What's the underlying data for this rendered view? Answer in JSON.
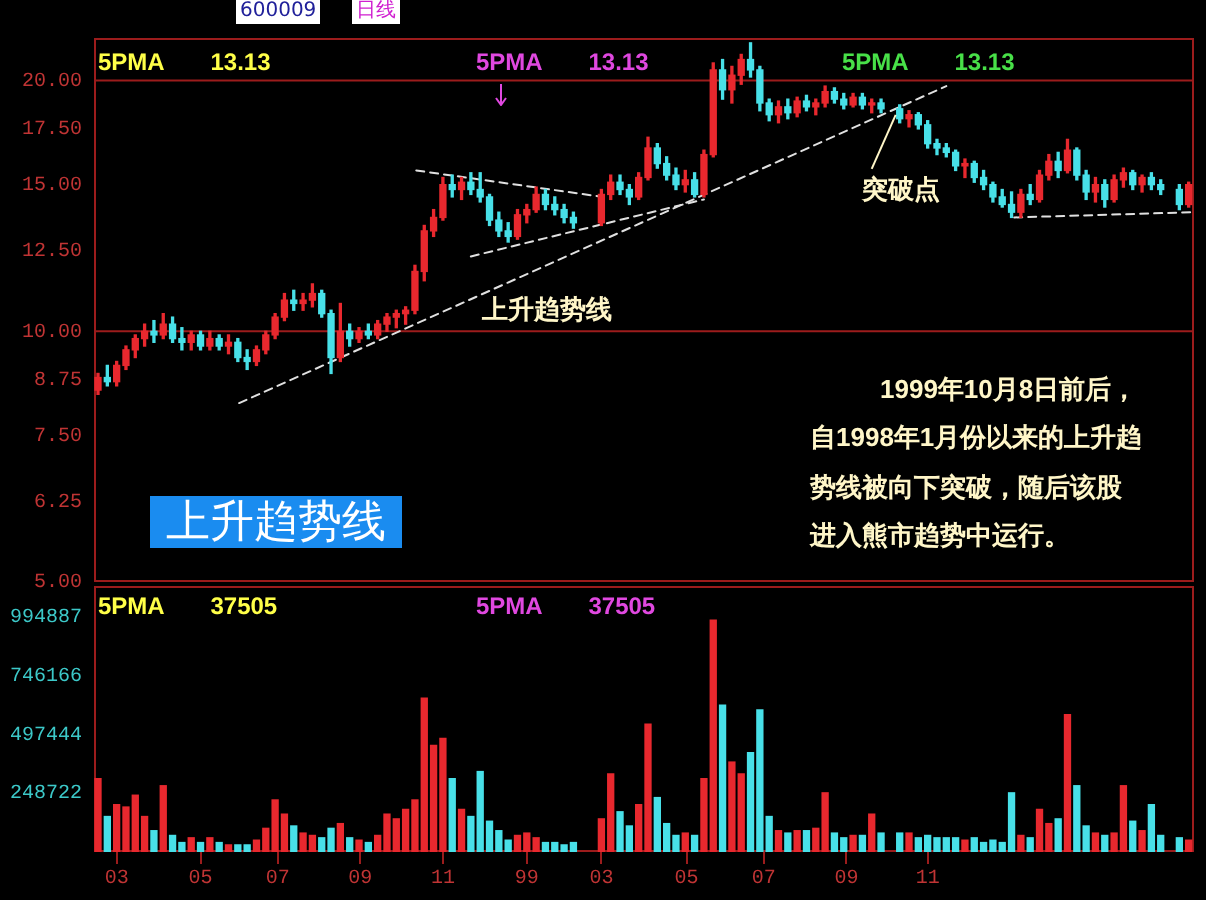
{
  "chart_data": [
    {
      "type": "candlestick",
      "title": "600009",
      "subtitle": "日线",
      "x": [
        "1998-02-16",
        "1998-02-23",
        "1998-03-02",
        "1998-03-09",
        "1998-03-16",
        "1998-03-23",
        "1998-03-30",
        "1998-04-06",
        "1998-04-13",
        "1998-04-20",
        "1998-04-27",
        "1998-05-04",
        "1998-05-11",
        "1998-05-18",
        "1998-05-25",
        "1998-06-01",
        "1998-06-08",
        "1998-06-15",
        "1998-06-22",
        "1998-06-29",
        "1998-07-06",
        "1998-07-13",
        "1998-07-20",
        "1998-07-27",
        "1998-08-03",
        "1998-08-10",
        "1998-08-17",
        "1998-08-24",
        "1998-08-31",
        "1998-09-07",
        "1998-09-14",
        "1998-09-21",
        "1998-09-28",
        "1998-10-05",
        "1998-10-12",
        "1998-10-19",
        "1998-10-26",
        "1998-11-02",
        "1998-11-09",
        "1998-11-16",
        "1998-11-23",
        "1998-11-30",
        "1998-12-07",
        "1998-12-14",
        "1998-12-21",
        "1998-12-28",
        "1999-01-04",
        "1999-01-11",
        "1999-01-18",
        "1999-01-25",
        "1999-02-01",
        "1999-02-08",
        "1999-03-01",
        "1999-03-08",
        "1999-03-15",
        "1999-03-22",
        "1999-03-29",
        "1999-04-05",
        "1999-04-12",
        "1999-04-19",
        "1999-04-26",
        "1999-05-03",
        "1999-05-10",
        "1999-05-17",
        "1999-05-24",
        "1999-05-31",
        "1999-06-07",
        "1999-06-14",
        "1999-06-21",
        "1999-06-28",
        "1999-07-05",
        "1999-07-12",
        "1999-07-19",
        "1999-07-26",
        "1999-08-02",
        "1999-08-09",
        "1999-08-16",
        "1999-08-23",
        "1999-08-30",
        "1999-09-06",
        "1999-09-13",
        "1999-09-20",
        "1999-09-27",
        "1999-10-11",
        "1999-10-18",
        "1999-10-25",
        "1999-11-01",
        "1999-11-08",
        "1999-11-15",
        "1999-11-22",
        "1999-11-29",
        "1999-12-06",
        "1999-12-13",
        "1999-12-20",
        "1999-12-27",
        "2000-01-03",
        "2000-01-10",
        "2000-01-17",
        "2000-01-24",
        "2000-01-31",
        "2000-02-07",
        "2000-02-14",
        "2000-02-21",
        "2000-02-28",
        "2000-03-06",
        "2000-03-13",
        "2000-03-20",
        "2000-03-27",
        "2000-04-03",
        "2000-04-10",
        "2000-04-17",
        "2000-04-24",
        "2000-05-08",
        "2000-05-15"
      ],
      "ohlc": [
        [
          8.5,
          8.9,
          8.4,
          8.8
        ],
        [
          8.8,
          9.1,
          8.6,
          8.7
        ],
        [
          8.7,
          9.2,
          8.6,
          9.1
        ],
        [
          9.1,
          9.6,
          9.0,
          9.5
        ],
        [
          9.5,
          9.9,
          9.3,
          9.8
        ],
        [
          9.8,
          10.2,
          9.6,
          10.0
        ],
        [
          10.0,
          10.3,
          9.7,
          9.9
        ],
        [
          9.9,
          10.5,
          9.8,
          10.2
        ],
        [
          10.2,
          10.4,
          9.7,
          9.8
        ],
        [
          9.8,
          10.1,
          9.5,
          9.7
        ],
        [
          9.7,
          10.0,
          9.5,
          9.9
        ],
        [
          9.9,
          10.0,
          9.5,
          9.6
        ],
        [
          9.6,
          10.0,
          9.5,
          9.8
        ],
        [
          9.8,
          9.9,
          9.5,
          9.6
        ],
        [
          9.6,
          9.9,
          9.4,
          9.7
        ],
        [
          9.7,
          9.8,
          9.2,
          9.3
        ],
        [
          9.3,
          9.5,
          9.0,
          9.2
        ],
        [
          9.2,
          9.6,
          9.1,
          9.5
        ],
        [
          9.5,
          10.0,
          9.4,
          9.9
        ],
        [
          9.9,
          10.5,
          9.8,
          10.4
        ],
        [
          10.4,
          11.1,
          10.3,
          10.9
        ],
        [
          10.9,
          11.2,
          10.6,
          10.8
        ],
        [
          10.8,
          11.1,
          10.6,
          10.9
        ],
        [
          10.9,
          11.4,
          10.7,
          11.1
        ],
        [
          11.1,
          11.2,
          10.4,
          10.5
        ],
        [
          10.5,
          10.6,
          8.9,
          9.3
        ],
        [
          9.3,
          10.8,
          9.2,
          10.0
        ],
        [
          10.0,
          10.2,
          9.6,
          9.8
        ],
        [
          9.8,
          10.1,
          9.7,
          10.0
        ],
        [
          10.0,
          10.2,
          9.8,
          9.9
        ],
        [
          9.9,
          10.3,
          9.8,
          10.2
        ],
        [
          10.2,
          10.5,
          10.0,
          10.4
        ],
        [
          10.4,
          10.6,
          10.1,
          10.5
        ],
        [
          10.5,
          10.7,
          10.2,
          10.6
        ],
        [
          10.6,
          12.0,
          10.5,
          11.8
        ],
        [
          11.8,
          13.4,
          11.5,
          13.2
        ],
        [
          13.2,
          14.0,
          13.0,
          13.7
        ],
        [
          13.7,
          15.3,
          13.6,
          15.0
        ],
        [
          15.0,
          15.4,
          14.5,
          14.8
        ],
        [
          14.8,
          15.3,
          14.4,
          15.1
        ],
        [
          15.1,
          15.5,
          14.6,
          14.8
        ],
        [
          14.8,
          15.5,
          14.3,
          14.5
        ],
        [
          14.5,
          14.6,
          13.4,
          13.6
        ],
        [
          13.6,
          13.9,
          13.0,
          13.2
        ],
        [
          13.2,
          13.5,
          12.8,
          13.0
        ],
        [
          13.0,
          14.0,
          12.9,
          13.8
        ],
        [
          13.8,
          14.2,
          13.5,
          14.0
        ],
        [
          14.0,
          14.9,
          13.9,
          14.6
        ],
        [
          14.6,
          14.8,
          14.0,
          14.2
        ],
        [
          14.2,
          14.5,
          13.8,
          14.0
        ],
        [
          14.0,
          14.2,
          13.5,
          13.7
        ],
        [
          13.7,
          13.9,
          13.3,
          13.5
        ],
        [
          13.5,
          14.8,
          13.4,
          14.6
        ],
        [
          14.6,
          15.4,
          14.4,
          15.1
        ],
        [
          15.1,
          15.4,
          14.6,
          14.8
        ],
        [
          14.8,
          15.0,
          14.2,
          14.5
        ],
        [
          14.5,
          15.5,
          14.4,
          15.3
        ],
        [
          15.3,
          17.1,
          15.2,
          16.6
        ],
        [
          16.6,
          16.8,
          15.7,
          15.9
        ],
        [
          15.9,
          16.2,
          15.2,
          15.4
        ],
        [
          15.4,
          15.7,
          14.8,
          15.0
        ],
        [
          15.0,
          15.6,
          14.7,
          15.2
        ],
        [
          15.2,
          15.5,
          14.5,
          14.6
        ],
        [
          14.6,
          16.5,
          14.5,
          16.3
        ],
        [
          16.3,
          21.0,
          16.2,
          20.6
        ],
        [
          20.6,
          21.2,
          19.0,
          19.5
        ],
        [
          19.5,
          20.8,
          18.8,
          20.3
        ],
        [
          20.3,
          21.5,
          19.8,
          21.2
        ],
        [
          21.2,
          22.2,
          20.2,
          20.6
        ],
        [
          20.6,
          20.8,
          18.4,
          18.8
        ],
        [
          18.8,
          19.0,
          17.9,
          18.2
        ],
        [
          18.2,
          18.9,
          17.8,
          18.6
        ],
        [
          18.6,
          19.0,
          18.0,
          18.3
        ],
        [
          18.3,
          19.1,
          18.1,
          18.9
        ],
        [
          18.9,
          19.2,
          18.4,
          18.6
        ],
        [
          18.6,
          19.0,
          18.2,
          18.8
        ],
        [
          18.8,
          19.7,
          18.6,
          19.4
        ],
        [
          19.4,
          19.6,
          18.8,
          19.0
        ],
        [
          19.0,
          19.3,
          18.5,
          18.7
        ],
        [
          18.7,
          19.3,
          18.6,
          19.1
        ],
        [
          19.1,
          19.3,
          18.5,
          18.7
        ],
        [
          18.7,
          19.0,
          18.3,
          18.8
        ],
        [
          18.8,
          19.0,
          18.3,
          18.5
        ],
        [
          18.5,
          18.7,
          17.8,
          18.0
        ],
        [
          18.0,
          18.4,
          17.6,
          18.2
        ],
        [
          18.2,
          18.3,
          17.5,
          17.7
        ],
        [
          17.7,
          17.9,
          16.6,
          16.8
        ],
        [
          16.8,
          17.0,
          16.3,
          16.6
        ],
        [
          16.6,
          16.8,
          16.2,
          16.4
        ],
        [
          16.4,
          16.5,
          15.6,
          15.8
        ],
        [
          15.8,
          16.1,
          15.3,
          15.9
        ],
        [
          15.9,
          16.0,
          15.1,
          15.3
        ],
        [
          15.3,
          15.6,
          14.8,
          15.0
        ],
        [
          15.0,
          15.1,
          14.3,
          14.5
        ],
        [
          14.5,
          14.8,
          14.1,
          14.2
        ],
        [
          14.2,
          14.7,
          13.7,
          13.9
        ],
        [
          13.9,
          14.8,
          13.7,
          14.6
        ],
        [
          14.6,
          15.0,
          14.2,
          14.4
        ],
        [
          14.4,
          15.6,
          14.3,
          15.4
        ],
        [
          15.4,
          16.3,
          15.2,
          16.0
        ],
        [
          16.0,
          16.4,
          15.3,
          15.6
        ],
        [
          15.6,
          17.0,
          15.5,
          16.5
        ],
        [
          16.5,
          16.6,
          15.2,
          15.4
        ],
        [
          15.4,
          15.6,
          14.4,
          14.7
        ],
        [
          14.7,
          15.3,
          14.3,
          15.0
        ],
        [
          15.0,
          15.2,
          14.1,
          14.4
        ],
        [
          14.4,
          15.4,
          14.3,
          15.2
        ],
        [
          15.2,
          15.7,
          14.9,
          15.5
        ],
        [
          15.5,
          15.6,
          14.8,
          15.0
        ],
        [
          15.0,
          15.4,
          14.7,
          15.3
        ],
        [
          15.3,
          15.5,
          14.8,
          15.0
        ],
        [
          15.0,
          15.2,
          14.6,
          14.8
        ],
        [
          14.8,
          15.0,
          14.0,
          14.2
        ],
        [
          14.2,
          15.1,
          14.1,
          15.0
        ]
      ],
      "colors": [
        "#e8282e",
        "#48e0e8",
        "#e8282e",
        "#e8282e",
        "#e8282e",
        "#e8282e",
        "#48e0e8",
        "#e8282e",
        "#48e0e8",
        "#48e0e8",
        "#e8282e",
        "#48e0e8",
        "#e8282e",
        "#48e0e8",
        "#e8282e",
        "#48e0e8",
        "#48e0e8",
        "#e8282e",
        "#e8282e",
        "#e8282e",
        "#e8282e",
        "#48e0e8",
        "#e8282e",
        "#e8282e",
        "#48e0e8",
        "#48e0e8",
        "#e8282e",
        "#48e0e8",
        "#e8282e",
        "#48e0e8",
        "#e8282e",
        "#e8282e",
        "#e8282e",
        "#e8282e",
        "#e8282e",
        "#e8282e",
        "#e8282e",
        "#e8282e",
        "#48e0e8",
        "#e8282e",
        "#48e0e8",
        "#48e0e8",
        "#48e0e8",
        "#48e0e8",
        "#48e0e8",
        "#e8282e",
        "#e8282e",
        "#e8282e",
        "#48e0e8",
        "#48e0e8",
        "#48e0e8",
        "#48e0e8",
        "#e8282e",
        "#e8282e",
        "#48e0e8",
        "#48e0e8",
        "#e8282e",
        "#e8282e",
        "#48e0e8",
        "#48e0e8",
        "#48e0e8",
        "#e8282e",
        "#48e0e8",
        "#e8282e",
        "#e8282e",
        "#48e0e8",
        "#e8282e",
        "#e8282e",
        "#48e0e8",
        "#48e0e8",
        "#48e0e8",
        "#e8282e",
        "#48e0e8",
        "#e8282e",
        "#48e0e8",
        "#e8282e",
        "#e8282e",
        "#48e0e8",
        "#48e0e8",
        "#e8282e",
        "#48e0e8",
        "#e8282e",
        "#48e0e8",
        "#48e0e8",
        "#e8282e",
        "#48e0e8",
        "#48e0e8",
        "#48e0e8",
        "#48e0e8",
        "#48e0e8",
        "#e8282e",
        "#48e0e8",
        "#48e0e8",
        "#48e0e8",
        "#48e0e8",
        "#48e0e8",
        "#e8282e",
        "#48e0e8",
        "#e8282e",
        "#e8282e",
        "#48e0e8",
        "#e8282e",
        "#48e0e8",
        "#48e0e8",
        "#e8282e",
        "#48e0e8",
        "#e8282e",
        "#e8282e",
        "#48e0e8",
        "#e8282e",
        "#48e0e8",
        "#48e0e8",
        "#48e0e8",
        "#e8282e"
      ],
      "series": [
        {
          "type": "line",
          "x": [
            "1998-06-02",
            "1999-11-15"
          ],
          "values": [
            8.2,
            19.7
          ],
          "color": "#e0e0e0",
          "line_style": "dashed"
        },
        {
          "type": "line",
          "x": [
            "1998-10-13",
            "1999-03-02"
          ],
          "values": [
            15.6,
            14.5
          ],
          "color": "#e0e0e0",
          "line_style": "dashed"
        },
        {
          "type": "line",
          "x": [
            "1998-11-23",
            "1999-05-17"
          ],
          "values": [
            12.3,
            14.4
          ],
          "color": "#e0e0e0",
          "line_style": "dashed"
        },
        {
          "type": "line",
          "x": [
            "2000-01-05",
            "2000-05-19"
          ],
          "values": [
            13.7,
            13.9
          ],
          "color": "#e0e0e0",
          "line_style": "dashed"
        }
      ],
      "xlim": [
        "1998-02-13",
        "2000-05-19"
      ],
      "ylim": [
        5,
        22.5
      ],
      "yticks": [
        {
          "value": 5,
          "label": "5.00"
        },
        {
          "value": 6.25,
          "label": "6.25"
        },
        {
          "value": 7.5,
          "label": "7.50"
        },
        {
          "value": 8.75,
          "label": "8.75"
        },
        {
          "value": 10,
          "label": "10.00"
        },
        {
          "value": 12.5,
          "label": "12.50"
        },
        {
          "value": 15,
          "label": "15.00"
        },
        {
          "value": 17.5,
          "label": "17.50"
        },
        {
          "value": 20,
          "label": "20.00"
        }
      ],
      "log": true,
      "tick_labels": "y",
      "ref_lines": [
        {
          "axis": "y",
          "value": 20,
          "color": "#9c1c1c"
        },
        {
          "axis": "y",
          "value": 10,
          "color": "#9c1c1c"
        }
      ],
      "annotations": [
        "5PMA 13.13",
        "5PMA 13.13",
        "5PMA 13.13",
        {
          "text": "上升趋势线",
          "x": "1998-11-10",
          "y": 10.6
        },
        {
          "text": "突破点",
          "x": "1999-10-08",
          "y": 18.5
        },
        "上升趋势线",
        "1999年10月8日前后，",
        "自1998年1月份以来的上升趋",
        "势线被向下突破，随后该股",
        "进入熊市趋势中运行。"
      ]
    },
    {
      "type": "bar",
      "x": [
        "1998-02-16",
        "1998-02-23",
        "1998-03-02",
        "1998-03-09",
        "1998-03-16",
        "1998-03-23",
        "1998-03-30",
        "1998-04-06",
        "1998-04-13",
        "1998-04-20",
        "1998-04-27",
        "1998-05-04",
        "1998-05-11",
        "1998-05-18",
        "1998-05-25",
        "1998-06-01",
        "1998-06-08",
        "1998-06-15",
        "1998-06-22",
        "1998-06-29",
        "1998-07-06",
        "1998-07-13",
        "1998-07-20",
        "1998-07-27",
        "1998-08-03",
        "1998-08-10",
        "1998-08-17",
        "1998-08-24",
        "1998-08-31",
        "1998-09-07",
        "1998-09-14",
        "1998-09-21",
        "1998-09-28",
        "1998-10-05",
        "1998-10-12",
        "1998-10-19",
        "1998-10-26",
        "1998-11-02",
        "1998-11-09",
        "1998-11-16",
        "1998-11-23",
        "1998-11-30",
        "1998-12-07",
        "1998-12-14",
        "1998-12-21",
        "1998-12-28",
        "1999-01-04",
        "1999-01-11",
        "1999-01-18",
        "1999-01-25",
        "1999-02-01",
        "1999-02-08",
        "1999-03-01",
        "1999-03-08",
        "1999-03-15",
        "1999-03-22",
        "1999-03-29",
        "1999-04-05",
        "1999-04-12",
        "1999-04-19",
        "1999-04-26",
        "1999-05-03",
        "1999-05-10",
        "1999-05-17",
        "1999-05-24",
        "1999-05-31",
        "1999-06-07",
        "1999-06-14",
        "1999-06-21",
        "1999-06-28",
        "1999-07-05",
        "1999-07-12",
        "1999-07-19",
        "1999-07-26",
        "1999-08-02",
        "1999-08-09",
        "1999-08-16",
        "1999-08-23",
        "1999-08-30",
        "1999-09-06",
        "1999-09-13",
        "1999-09-20",
        "1999-09-27",
        "1999-10-11",
        "1999-10-18",
        "1999-10-25",
        "1999-11-01",
        "1999-11-08",
        "1999-11-15",
        "1999-11-22",
        "1999-11-29",
        "1999-12-06",
        "1999-12-13",
        "1999-12-20",
        "1999-12-27",
        "2000-01-03",
        "2000-01-10",
        "2000-01-17",
        "2000-01-24",
        "2000-01-31",
        "2000-02-07",
        "2000-02-14",
        "2000-02-21",
        "2000-02-28",
        "2000-03-06",
        "2000-03-13",
        "2000-03-20",
        "2000-03-27",
        "2000-04-03",
        "2000-04-10",
        "2000-04-17",
        "2000-04-24",
        "2000-05-08",
        "2000-05-15"
      ],
      "values": [
        310000,
        150000,
        200000,
        190000,
        240000,
        150000,
        90000,
        280000,
        70000,
        40000,
        60000,
        40000,
        60000,
        40000,
        30000,
        30000,
        30000,
        50000,
        100000,
        220000,
        160000,
        110000,
        80000,
        70000,
        60000,
        100000,
        120000,
        60000,
        50000,
        40000,
        70000,
        160000,
        140000,
        180000,
        220000,
        650000,
        450000,
        480000,
        310000,
        180000,
        150000,
        340000,
        130000,
        90000,
        50000,
        70000,
        80000,
        60000,
        40000,
        40000,
        30000,
        40000,
        140000,
        330000,
        170000,
        110000,
        200000,
        540000,
        230000,
        120000,
        70000,
        80000,
        70000,
        310000,
        980000,
        620000,
        380000,
        330000,
        420000,
        600000,
        150000,
        90000,
        80000,
        90000,
        90000,
        100000,
        250000,
        80000,
        60000,
        70000,
        70000,
        160000,
        80000,
        80000,
        80000,
        60000,
        70000,
        60000,
        60000,
        60000,
        50000,
        60000,
        40000,
        50000,
        40000,
        250000,
        70000,
        60000,
        180000,
        120000,
        140000,
        580000,
        280000,
        110000,
        80000,
        70000,
        80000,
        280000,
        130000,
        90000,
        200000,
        70000,
        60000,
        50000
      ],
      "colors": [
        "#e8282e",
        "#48e0e8",
        "#e8282e",
        "#e8282e",
        "#e8282e",
        "#e8282e",
        "#48e0e8",
        "#e8282e",
        "#48e0e8",
        "#48e0e8",
        "#e8282e",
        "#48e0e8",
        "#e8282e",
        "#48e0e8",
        "#e8282e",
        "#48e0e8",
        "#48e0e8",
        "#e8282e",
        "#e8282e",
        "#e8282e",
        "#e8282e",
        "#48e0e8",
        "#e8282e",
        "#e8282e",
        "#48e0e8",
        "#48e0e8",
        "#e8282e",
        "#48e0e8",
        "#e8282e",
        "#48e0e8",
        "#e8282e",
        "#e8282e",
        "#e8282e",
        "#e8282e",
        "#e8282e",
        "#e8282e",
        "#e8282e",
        "#e8282e",
        "#48e0e8",
        "#e8282e",
        "#48e0e8",
        "#48e0e8",
        "#48e0e8",
        "#48e0e8",
        "#48e0e8",
        "#e8282e",
        "#e8282e",
        "#e8282e",
        "#48e0e8",
        "#48e0e8",
        "#48e0e8",
        "#48e0e8",
        "#e8282e",
        "#e8282e",
        "#48e0e8",
        "#48e0e8",
        "#e8282e",
        "#e8282e",
        "#48e0e8",
        "#48e0e8",
        "#48e0e8",
        "#e8282e",
        "#48e0e8",
        "#e8282e",
        "#e8282e",
        "#48e0e8",
        "#e8282e",
        "#e8282e",
        "#48e0e8",
        "#48e0e8",
        "#48e0e8",
        "#e8282e",
        "#48e0e8",
        "#e8282e",
        "#48e0e8",
        "#e8282e",
        "#e8282e",
        "#48e0e8",
        "#48e0e8",
        "#e8282e",
        "#48e0e8",
        "#e8282e",
        "#48e0e8",
        "#48e0e8",
        "#e8282e",
        "#48e0e8",
        "#48e0e8",
        "#48e0e8",
        "#48e0e8",
        "#48e0e8",
        "#e8282e",
        "#48e0e8",
        "#48e0e8",
        "#48e0e8",
        "#48e0e8",
        "#48e0e8",
        "#e8282e",
        "#48e0e8",
        "#e8282e",
        "#e8282e",
        "#48e0e8",
        "#e8282e",
        "#48e0e8",
        "#48e0e8",
        "#e8282e",
        "#48e0e8",
        "#e8282e",
        "#e8282e",
        "#48e0e8",
        "#e8282e",
        "#48e0e8",
        "#48e0e8",
        "#48e0e8",
        "#e8282e"
      ],
      "xlim": [
        "1998-02-13",
        "2000-05-19"
      ],
      "xticks": [
        {
          "value": "1998-03-02",
          "label": "03"
        },
        {
          "value": "1998-05-04",
          "label": "05"
        },
        {
          "value": "1998-07-01",
          "label": "07"
        },
        {
          "value": "1998-09-01",
          "label": "09"
        },
        {
          "value": "1998-11-02",
          "label": "11"
        },
        {
          "value": "1999-01-04",
          "label": "99"
        },
        {
          "value": "1999-03-01",
          "label": "03"
        },
        {
          "value": "1999-05-04",
          "label": "05"
        },
        {
          "value": "1999-07-01",
          "label": "07"
        },
        {
          "value": "1999-09-01",
          "label": "09"
        },
        {
          "value": "1999-11-01",
          "label": "11"
        }
      ],
      "ylim": [
        0,
        1124000
      ],
      "yticks": [
        248722,
        497444,
        746166,
        994887
      ],
      "annotations": [
        "5PMA 37505",
        "5PMA 37505"
      ]
    }
  ]
}
